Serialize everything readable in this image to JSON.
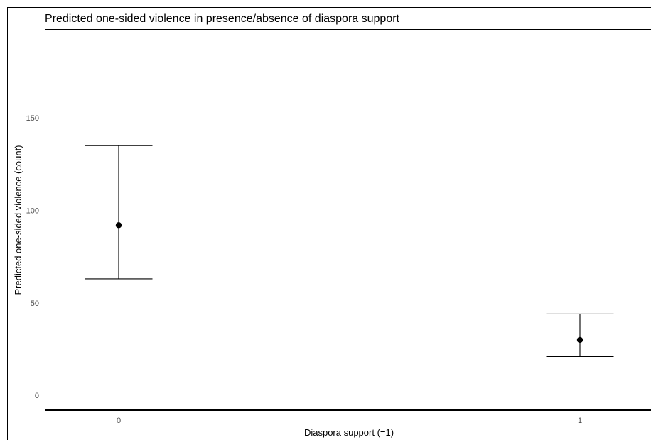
{
  "chart_data": {
    "type": "errorbar",
    "title": "Predicted one-sided violence in presence/absence of diaspora support",
    "xlabel": "Diaspora support (=1)",
    "ylabel": "Predicted one-sided violence (count)",
    "categories": [
      "0",
      "1"
    ],
    "yticks": [
      0,
      50,
      100,
      150
    ],
    "ylim": [
      -8,
      198
    ],
    "points": [
      {
        "x": "0",
        "estimate": 92,
        "lower": 63,
        "upper": 135
      },
      {
        "x": "1",
        "estimate": 30,
        "lower": 21,
        "upper": 44
      }
    ],
    "grid": false,
    "legend": "none",
    "colors": {
      "marks": "#000000",
      "tick_text": "#4d4d4d",
      "frame": "#000000",
      "background": "#ffffff"
    }
  }
}
